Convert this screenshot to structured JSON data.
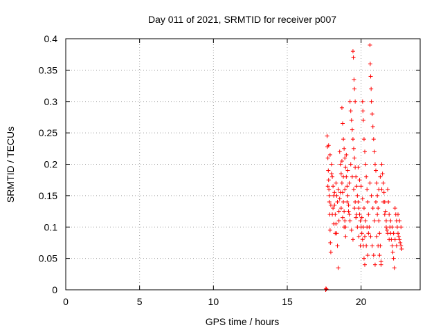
{
  "chart_data": {
    "type": "scatter",
    "title": "Day 011 of 2021, SRMTID for receiver p007",
    "xlabel": "GPS time / hours",
    "ylabel": "SRMTID / TECUs",
    "xlim": [
      0,
      24
    ],
    "ylim": [
      0,
      0.4
    ],
    "xticks": [
      0,
      5,
      10,
      15,
      20
    ],
    "xtick_labels": [
      "0",
      "5",
      "10",
      "15",
      "20"
    ],
    "yticks": [
      0,
      0.05,
      0.1,
      0.15,
      0.2,
      0.25,
      0.3,
      0.35,
      0.4
    ],
    "ytick_labels": [
      "0",
      "0.05",
      "0.1",
      "0.15",
      "0.2",
      "0.25",
      "0.3",
      "0.35",
      "0.4"
    ],
    "grid": true,
    "marker": "+",
    "color": "#ff0000",
    "series": [
      {
        "name": "p007",
        "points": [
          [
            17.6,
            0.0
          ],
          [
            17.62,
            0.002
          ],
          [
            17.65,
            0.001
          ],
          [
            17.7,
            0.245
          ],
          [
            17.72,
            0.228
          ],
          [
            17.75,
            0.21
          ],
          [
            17.78,
            0.19
          ],
          [
            17.8,
            0.175
          ],
          [
            17.82,
            0.16
          ],
          [
            17.85,
            0.14
          ],
          [
            17.88,
            0.12
          ],
          [
            17.9,
            0.095
          ],
          [
            17.92,
            0.075
          ],
          [
            17.95,
            0.06
          ],
          [
            18.0,
            0.2
          ],
          [
            18.05,
            0.18
          ],
          [
            18.1,
            0.165
          ],
          [
            18.15,
            0.15
          ],
          [
            18.2,
            0.135
          ],
          [
            18.25,
            0.12
          ],
          [
            18.3,
            0.105
          ],
          [
            18.35,
            0.09
          ],
          [
            18.4,
            0.07
          ],
          [
            18.45,
            0.035
          ],
          [
            18.5,
            0.11
          ],
          [
            18.55,
            0.22
          ],
          [
            18.6,
            0.2
          ],
          [
            18.65,
            0.185
          ],
          [
            18.7,
            0.17
          ],
          [
            18.75,
            0.155
          ],
          [
            18.8,
            0.14
          ],
          [
            18.85,
            0.125
          ],
          [
            18.9,
            0.11
          ],
          [
            18.95,
            0.1
          ],
          [
            18.7,
            0.29
          ],
          [
            18.75,
            0.265
          ],
          [
            18.8,
            0.24
          ],
          [
            18.85,
            0.225
          ],
          [
            18.9,
            0.21
          ],
          [
            18.95,
            0.195
          ],
          [
            19.0,
            0.18
          ],
          [
            19.05,
            0.165
          ],
          [
            19.1,
            0.15
          ],
          [
            19.15,
            0.135
          ],
          [
            19.2,
            0.12
          ],
          [
            19.25,
            0.3
          ],
          [
            19.3,
            0.285
          ],
          [
            19.35,
            0.27
          ],
          [
            19.4,
            0.255
          ],
          [
            19.45,
            0.24
          ],
          [
            19.5,
            0.225
          ],
          [
            19.55,
            0.21
          ],
          [
            19.6,
            0.195
          ],
          [
            19.65,
            0.18
          ],
          [
            19.7,
            0.165
          ],
          [
            19.45,
            0.38
          ],
          [
            19.48,
            0.37
          ],
          [
            19.52,
            0.335
          ],
          [
            19.55,
            0.32
          ],
          [
            19.6,
            0.3
          ],
          [
            19.75,
            0.15
          ],
          [
            19.8,
            0.14
          ],
          [
            19.85,
            0.13
          ],
          [
            19.9,
            0.12
          ],
          [
            19.95,
            0.11
          ],
          [
            20.0,
            0.1
          ],
          [
            20.05,
            0.09
          ],
          [
            20.1,
            0.08
          ],
          [
            20.15,
            0.07
          ],
          [
            20.2,
            0.05
          ],
          [
            20.25,
            0.04
          ],
          [
            20.1,
            0.3
          ],
          [
            20.12,
            0.285
          ],
          [
            20.15,
            0.27
          ],
          [
            20.2,
            0.24
          ],
          [
            20.25,
            0.22
          ],
          [
            20.3,
            0.2
          ],
          [
            20.35,
            0.18
          ],
          [
            20.4,
            0.16
          ],
          [
            20.45,
            0.14
          ],
          [
            20.5,
            0.12
          ],
          [
            20.6,
            0.39
          ],
          [
            20.62,
            0.36
          ],
          [
            20.65,
            0.34
          ],
          [
            20.68,
            0.32
          ],
          [
            20.7,
            0.3
          ],
          [
            20.75,
            0.28
          ],
          [
            20.8,
            0.26
          ],
          [
            20.85,
            0.24
          ],
          [
            20.9,
            0.22
          ],
          [
            20.95,
            0.2
          ],
          [
            21.0,
            0.19
          ],
          [
            21.05,
            0.17
          ],
          [
            21.1,
            0.15
          ],
          [
            21.15,
            0.13
          ],
          [
            21.2,
            0.11
          ],
          [
            21.25,
            0.09
          ],
          [
            21.3,
            0.07
          ],
          [
            21.35,
            0.045
          ],
          [
            21.4,
            0.2
          ],
          [
            21.45,
            0.185
          ],
          [
            21.5,
            0.17
          ],
          [
            21.55,
            0.155
          ],
          [
            21.6,
            0.14
          ],
          [
            21.65,
            0.125
          ],
          [
            21.7,
            0.11
          ],
          [
            21.75,
            0.095
          ],
          [
            21.8,
            0.16
          ],
          [
            21.85,
            0.14
          ],
          [
            21.9,
            0.12
          ],
          [
            21.95,
            0.1
          ],
          [
            22.0,
            0.09
          ],
          [
            22.05,
            0.08
          ],
          [
            22.1,
            0.07
          ],
          [
            22.15,
            0.06
          ],
          [
            22.2,
            0.05
          ],
          [
            22.25,
            0.035
          ],
          [
            22.3,
            0.13
          ],
          [
            22.35,
            0.12
          ],
          [
            22.4,
            0.11
          ],
          [
            22.45,
            0.1
          ],
          [
            22.5,
            0.09
          ],
          [
            22.55,
            0.085
          ],
          [
            22.6,
            0.08
          ],
          [
            22.65,
            0.075
          ],
          [
            22.7,
            0.07
          ],
          [
            22.75,
            0.065
          ],
          [
            17.8,
            0.23
          ],
          [
            17.9,
            0.215
          ],
          [
            18.0,
            0.185
          ],
          [
            18.1,
            0.13
          ],
          [
            18.2,
            0.155
          ],
          [
            18.3,
            0.17
          ],
          [
            18.4,
            0.14
          ],
          [
            18.5,
            0.125
          ],
          [
            18.6,
            0.155
          ],
          [
            18.7,
            0.205
          ],
          [
            18.8,
            0.18
          ],
          [
            18.9,
            0.16
          ],
          [
            19.0,
            0.215
          ],
          [
            19.1,
            0.19
          ],
          [
            19.2,
            0.17
          ],
          [
            19.3,
            0.2
          ],
          [
            19.4,
            0.18
          ],
          [
            19.5,
            0.16
          ],
          [
            19.6,
            0.14
          ],
          [
            19.7,
            0.12
          ],
          [
            19.8,
            0.195
          ],
          [
            19.9,
            0.175
          ],
          [
            20.0,
            0.165
          ],
          [
            20.1,
            0.145
          ],
          [
            20.2,
            0.13
          ],
          [
            20.3,
            0.11
          ],
          [
            20.4,
            0.1
          ],
          [
            20.5,
            0.09
          ],
          [
            20.6,
            0.17
          ],
          [
            20.7,
            0.15
          ],
          [
            20.8,
            0.13
          ],
          [
            20.9,
            0.11
          ],
          [
            21.0,
            0.14
          ],
          [
            21.1,
            0.12
          ],
          [
            21.2,
            0.16
          ],
          [
            21.3,
            0.18
          ],
          [
            21.4,
            0.16
          ],
          [
            21.5,
            0.14
          ],
          [
            21.6,
            0.12
          ],
          [
            21.7,
            0.1
          ],
          [
            21.8,
            0.09
          ],
          [
            21.9,
            0.08
          ],
          [
            22.0,
            0.11
          ],
          [
            22.1,
            0.1
          ],
          [
            22.2,
            0.09
          ],
          [
            22.3,
            0.08
          ],
          [
            22.4,
            0.07
          ],
          [
            22.5,
            0.12
          ],
          [
            22.6,
            0.11
          ],
          [
            22.7,
            0.1
          ],
          [
            17.75,
            0.165
          ],
          [
            17.85,
            0.15
          ],
          [
            17.95,
            0.135
          ],
          [
            18.05,
            0.12
          ],
          [
            18.15,
            0.105
          ],
          [
            18.25,
            0.09
          ],
          [
            18.35,
            0.15
          ],
          [
            18.45,
            0.16
          ],
          [
            18.55,
            0.145
          ],
          [
            18.65,
            0.13
          ],
          [
            18.75,
            0.115
          ],
          [
            18.85,
            0.1
          ],
          [
            18.95,
            0.085
          ],
          [
            19.05,
            0.14
          ],
          [
            19.15,
            0.125
          ],
          [
            19.25,
            0.11
          ],
          [
            19.35,
            0.095
          ],
          [
            19.45,
            0.08
          ],
          [
            19.55,
            0.13
          ],
          [
            19.65,
            0.115
          ],
          [
            19.75,
            0.1
          ],
          [
            19.85,
            0.085
          ],
          [
            19.95,
            0.07
          ],
          [
            20.05,
            0.115
          ],
          [
            20.15,
            0.1
          ],
          [
            20.25,
            0.085
          ],
          [
            20.35,
            0.07
          ],
          [
            20.45,
            0.055
          ],
          [
            20.55,
            0.1
          ],
          [
            20.65,
            0.085
          ],
          [
            20.75,
            0.07
          ],
          [
            20.85,
            0.055
          ],
          [
            20.95,
            0.04
          ],
          [
            21.05,
            0.085
          ],
          [
            21.15,
            0.07
          ],
          [
            21.25,
            0.055
          ],
          [
            21.35,
            0.04
          ]
        ]
      }
    ]
  }
}
